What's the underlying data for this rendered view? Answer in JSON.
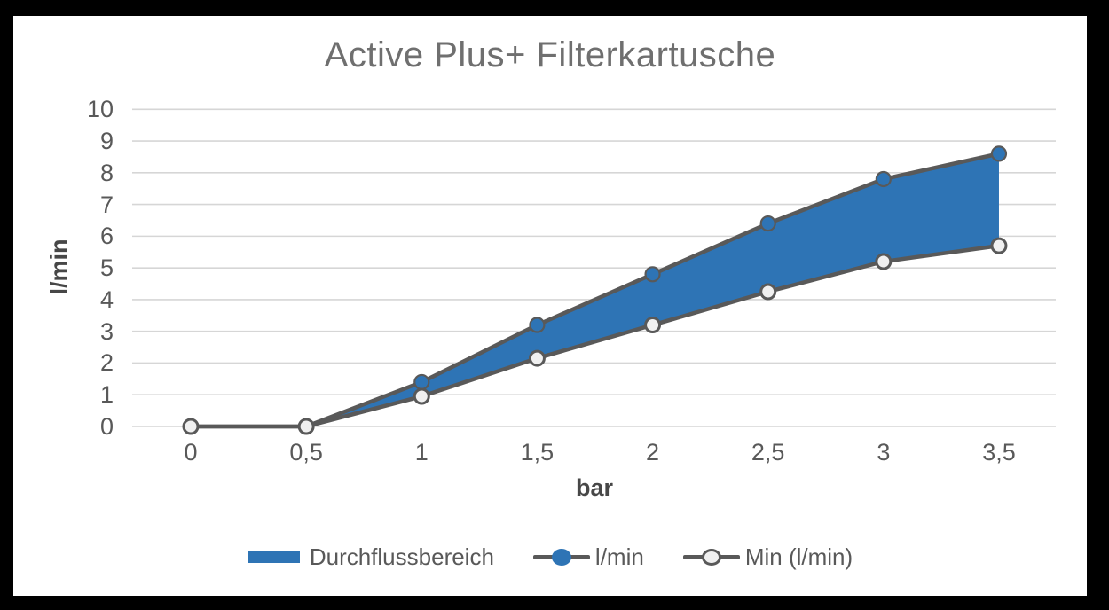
{
  "window": {
    "frame_color": "#000000",
    "canvas_color": "#ffffff"
  },
  "chart_data": {
    "type": "area",
    "title": "Active Plus+ Filterkartusche",
    "xlabel": "bar",
    "ylabel": "l/min",
    "x": [
      0,
      0.5,
      1,
      1.5,
      2,
      2.5,
      3,
      3.5
    ],
    "x_tick_labels": [
      "0",
      "0,5",
      "1",
      "1,5",
      "2",
      "2,5",
      "3",
      "3,5"
    ],
    "y_ticks": [
      0,
      1,
      2,
      3,
      4,
      5,
      6,
      7,
      8,
      9,
      10
    ],
    "ylim": [
      0,
      10
    ],
    "grid": "horizontal-only",
    "legend_position": "bottom",
    "area": {
      "name": "Durchflussbereich",
      "between": [
        "l/min",
        "Min (l/min)"
      ],
      "fill": "#2e74b5"
    },
    "series": [
      {
        "name": "l/min",
        "values": [
          0,
          0,
          1.4,
          3.2,
          4.8,
          6.4,
          7.8,
          8.6
        ],
        "line_color": "#595959",
        "marker": "filled-circle",
        "marker_fill": "#2e74b5",
        "marker_stroke": "#595959"
      },
      {
        "name": "Min (l/min)",
        "values": [
          0,
          0,
          0.95,
          2.15,
          3.2,
          4.25,
          5.2,
          5.7
        ],
        "line_color": "#595959",
        "marker": "open-circle",
        "marker_fill": "#f0f0f0",
        "marker_stroke": "#595959"
      }
    ],
    "legend": [
      {
        "label": "Durchflussbereich",
        "swatch": "rect",
        "color": "#2e74b5"
      },
      {
        "label": "l/min",
        "swatch": "line-filled-dot",
        "color": "#2e74b5"
      },
      {
        "label": "Min (l/min)",
        "swatch": "line-open-dot",
        "color": "#f0f0f0"
      }
    ],
    "colors": {
      "gridline": "#d6d6d6",
      "tick_text": "#595959",
      "axis_title_text": "#474747",
      "title_text": "#6f6f6f",
      "series_line": "#595959",
      "area_fill": "#2e74b5"
    }
  }
}
